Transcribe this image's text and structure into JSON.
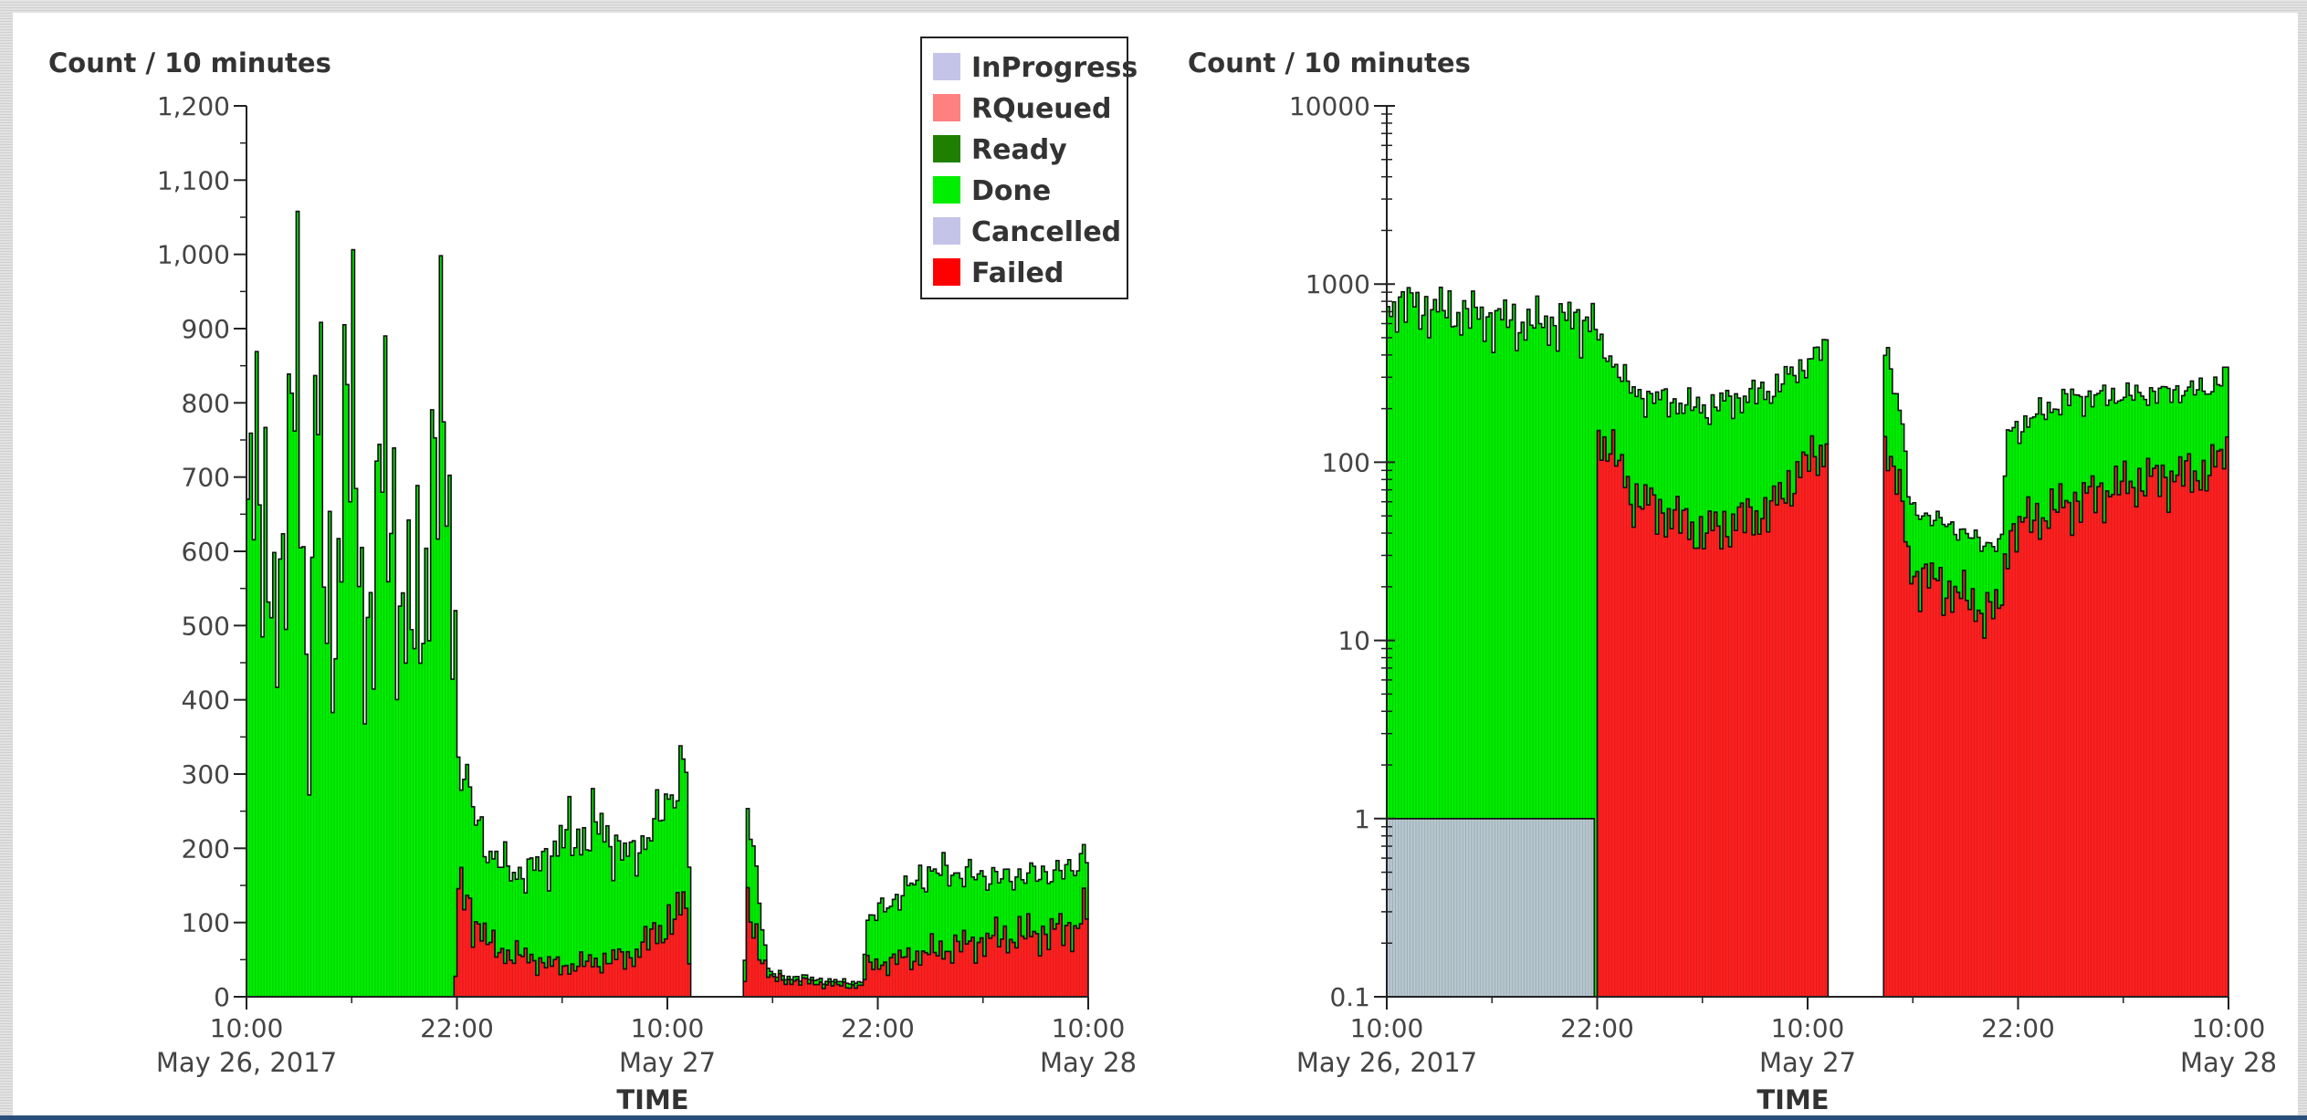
{
  "chart_data": [
    {
      "type": "area",
      "stacked": true,
      "y_scale": "linear",
      "ylabel": "Count / 10 minutes",
      "xlabel": "TIME",
      "ylim": [
        0,
        1200
      ],
      "y_ticks": [
        "0",
        "100",
        "200",
        "300",
        "400",
        "500",
        "600",
        "700",
        "800",
        "900",
        "1,000",
        "1,100",
        "1,200"
      ],
      "x_ticks": [
        {
          "time": "10:00",
          "date": "May 26, 2017"
        },
        {
          "time": "22:00",
          "date": ""
        },
        {
          "time": "10:00",
          "date": "May 27"
        },
        {
          "time": "22:00",
          "date": ""
        },
        {
          "time": "10:00",
          "date": "May 28"
        }
      ],
      "x_hours": [
        10,
        22,
        34,
        46,
        58
      ],
      "series": [
        {
          "name": "Failed",
          "color": "#ff2020",
          "points": [
            [
              10.0,
              0
            ],
            [
              21.9,
              0
            ],
            [
              22.0,
              150
            ],
            [
              24.0,
              65
            ],
            [
              28.0,
              40
            ],
            [
              32.0,
              55
            ],
            [
              34.0,
              100
            ],
            [
              35.2,
              120
            ],
            [
              35.3,
              0
            ],
            [
              38.4,
              0
            ],
            [
              38.5,
              130
            ],
            [
              39.8,
              25
            ],
            [
              44.0,
              15
            ],
            [
              45.2,
              15
            ],
            [
              45.3,
              40
            ],
            [
              49.0,
              60
            ],
            [
              53.0,
              80
            ],
            [
              57.0,
              90
            ],
            [
              58.0,
              120
            ]
          ]
        },
        {
          "name": "Done",
          "color": "#00ee00",
          "points": [
            [
              10.0,
              620
            ],
            [
              11.0,
              700
            ],
            [
              12.0,
              450
            ],
            [
              13.0,
              1050
            ],
            [
              13.5,
              240
            ],
            [
              14.0,
              800
            ],
            [
              15.0,
              480
            ],
            [
              16.0,
              830
            ],
            [
              17.0,
              440
            ],
            [
              18.0,
              780
            ],
            [
              19.0,
              460
            ],
            [
              20.0,
              560
            ],
            [
              21.0,
              760
            ],
            [
              21.9,
              560
            ],
            [
              22.0,
              170
            ],
            [
              24.0,
              120
            ],
            [
              26.0,
              110
            ],
            [
              28.0,
              170
            ],
            [
              30.0,
              180
            ],
            [
              32.0,
              130
            ],
            [
              34.0,
              160
            ],
            [
              35.2,
              210
            ],
            [
              35.3,
              0
            ],
            [
              38.4,
              0
            ],
            [
              38.5,
              140
            ],
            [
              39.8,
              5
            ],
            [
              44.0,
              5
            ],
            [
              45.2,
              5
            ],
            [
              45.3,
              60
            ],
            [
              49.0,
              110
            ],
            [
              53.0,
              80
            ],
            [
              57.0,
              80
            ],
            [
              58.0,
              80
            ]
          ]
        },
        {
          "name": "Cancelled",
          "color": "#c4c4e8",
          "points": []
        },
        {
          "name": "Ready",
          "color": "#1f7f00",
          "points": []
        },
        {
          "name": "RQueued",
          "color": "#ff8080",
          "points": []
        },
        {
          "name": "InProgress",
          "color": "#c4c4e8",
          "points": []
        }
      ]
    },
    {
      "type": "area",
      "stacked": true,
      "y_scale": "log",
      "ylabel": "Count / 10 minutes",
      "xlabel": "TIME",
      "ylim": [
        0.1,
        10000
      ],
      "y_ticks": [
        "0.1",
        "1",
        "10",
        "100",
        "1000",
        "10000"
      ],
      "x_ticks": [
        {
          "time": "10:00",
          "date": "May 26, 2017"
        },
        {
          "time": "22:00",
          "date": ""
        },
        {
          "time": "10:00",
          "date": "May 27"
        },
        {
          "time": "22:00",
          "date": ""
        },
        {
          "time": "10:00",
          "date": "May 28"
        }
      ],
      "x_hours": [
        10,
        22,
        34,
        46,
        58
      ],
      "series": [
        {
          "name": "Cancelled",
          "color": "#b8c8d0",
          "points": [
            [
              10.0,
              1
            ],
            [
              21.9,
              1
            ]
          ]
        },
        {
          "name": "Failed",
          "color": "#ff2020",
          "points": [
            [
              22.0,
              150
            ],
            [
              24.0,
              65
            ],
            [
              28.0,
              40
            ],
            [
              32.0,
              55
            ],
            [
              34.0,
              100
            ],
            [
              35.2,
              130
            ],
            [
              38.4,
              130
            ],
            [
              39.8,
              25
            ],
            [
              44.0,
              15
            ],
            [
              45.2,
              15
            ],
            [
              45.3,
              40
            ],
            [
              49.0,
              60
            ],
            [
              53.0,
              80
            ],
            [
              57.0,
              90
            ],
            [
              58.0,
              120
            ]
          ]
        },
        {
          "name": "Done",
          "color": "#00ee00",
          "points": [
            [
              10.0,
              800
            ],
            [
              14.0,
              700
            ],
            [
              18.0,
              600
            ],
            [
              21.9,
              650
            ],
            [
              22.0,
              320
            ],
            [
              24.0,
              180
            ],
            [
              28.0,
              160
            ],
            [
              32.0,
              200
            ],
            [
              34.0,
              260
            ],
            [
              35.2,
              330
            ],
            [
              38.4,
              300
            ],
            [
              39.8,
              30
            ],
            [
              44.0,
              20
            ],
            [
              45.2,
              20
            ],
            [
              45.3,
              100
            ],
            [
              49.0,
              170
            ],
            [
              53.0,
              160
            ],
            [
              57.0,
              170
            ],
            [
              58.0,
              200
            ]
          ]
        }
      ],
      "segments": [
        [
          10.0,
          35.2
        ],
        [
          38.4,
          58.0
        ]
      ]
    }
  ],
  "legend": [
    {
      "name": "InProgress",
      "color": "#c4c4e8"
    },
    {
      "name": "RQueued",
      "color": "#ff8080"
    },
    {
      "name": "Ready",
      "color": "#1f7f00"
    },
    {
      "name": "Done",
      "color": "#00ee00"
    },
    {
      "name": "Cancelled",
      "color": "#c4c4e8"
    },
    {
      "name": "Failed",
      "color": "#ff0000"
    }
  ]
}
